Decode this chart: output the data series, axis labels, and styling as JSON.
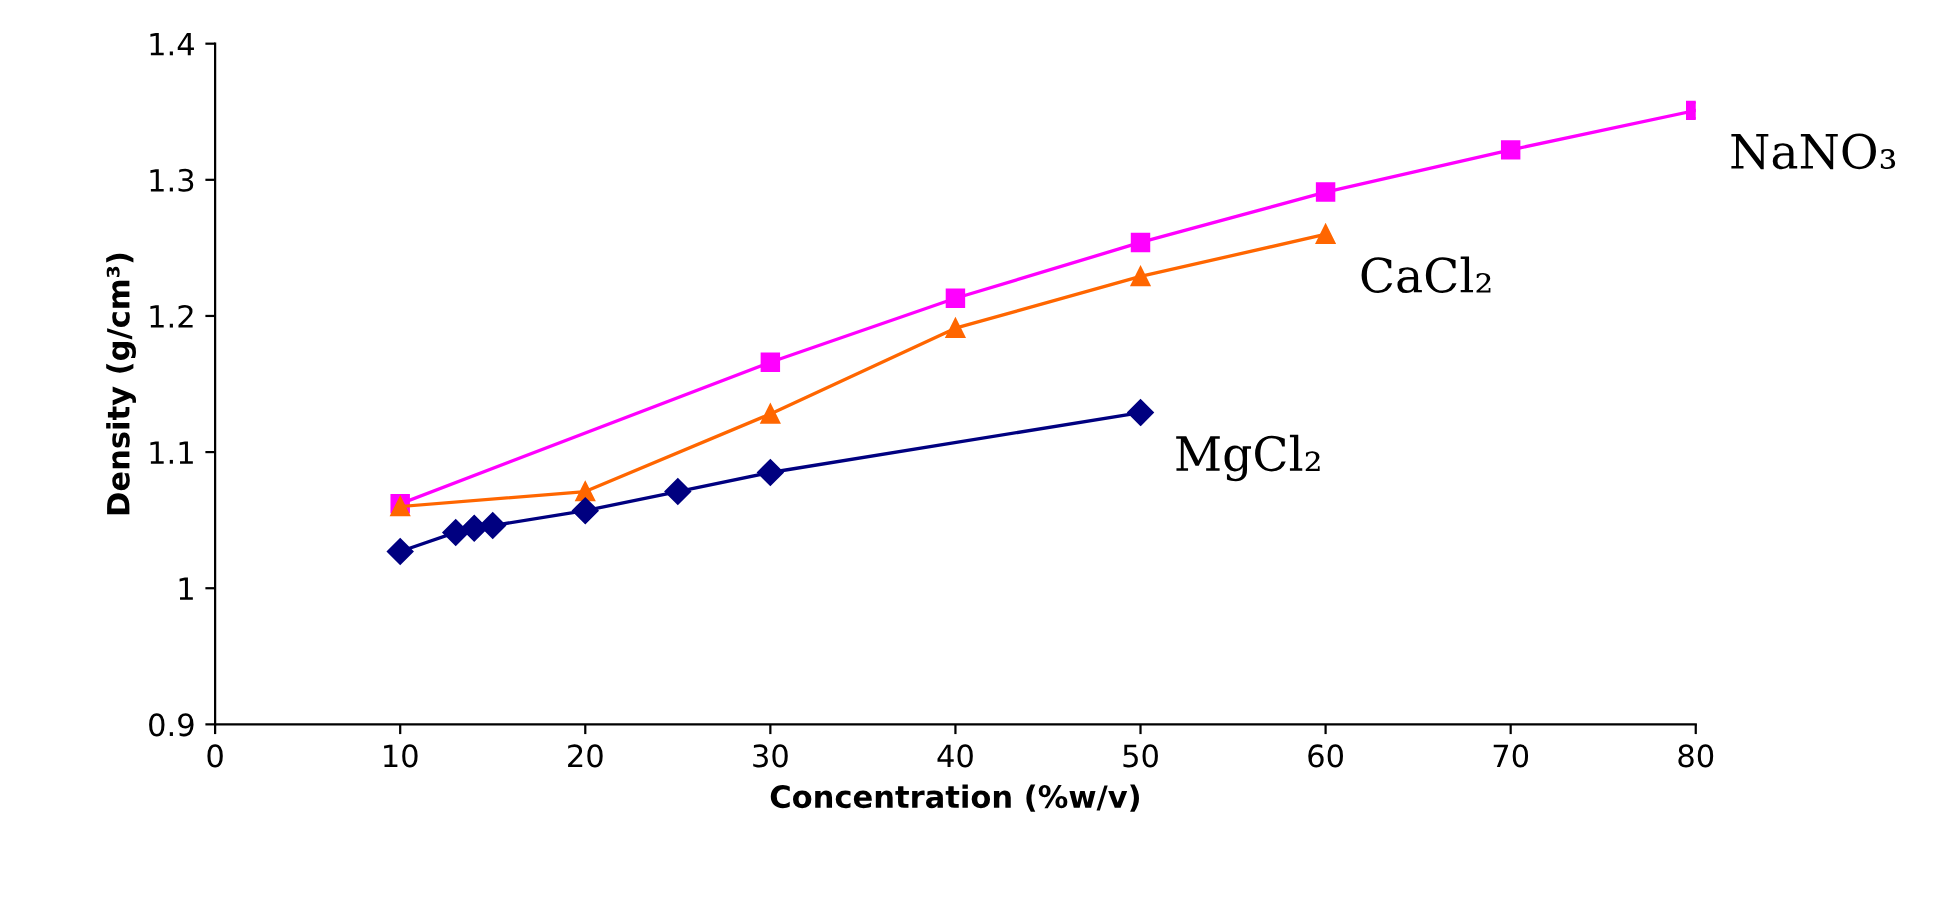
{
  "chart_data": {
    "type": "line",
    "xlabel": "Concentration (%w/v)",
    "ylabel": "Density (g/cm³)",
    "xlim": [
      0,
      80
    ],
    "xticks": [
      0,
      10,
      20,
      30,
      40,
      50,
      60,
      70,
      80
    ],
    "ylim": [
      0.9,
      1.4
    ],
    "yticks": [
      0.9,
      1,
      1.1,
      1.2,
      1.3,
      1.4
    ],
    "grid": false,
    "legend": false,
    "series": [
      {
        "name": "NaNO₃",
        "color": "#ff00ff",
        "marker": "square",
        "x": [
          10,
          30,
          40,
          50,
          60,
          70,
          80
        ],
        "values": [
          1.062,
          1.166,
          1.213,
          1.254,
          1.291,
          1.322,
          1.351
        ]
      },
      {
        "name": "CaCl₂",
        "color": "#ff6600",
        "marker": "triangle",
        "x": [
          10,
          20,
          30,
          40,
          50,
          60
        ],
        "values": [
          1.06,
          1.071,
          1.128,
          1.191,
          1.229,
          1.26
        ]
      },
      {
        "name": "MgCl₂",
        "color": "#000080",
        "marker": "diamond",
        "x": [
          10,
          13,
          14,
          15,
          20,
          25,
          30,
          50
        ],
        "values": [
          1.027,
          1.041,
          1.044,
          1.046,
          1.057,
          1.071,
          1.085,
          1.129
        ]
      }
    ]
  }
}
